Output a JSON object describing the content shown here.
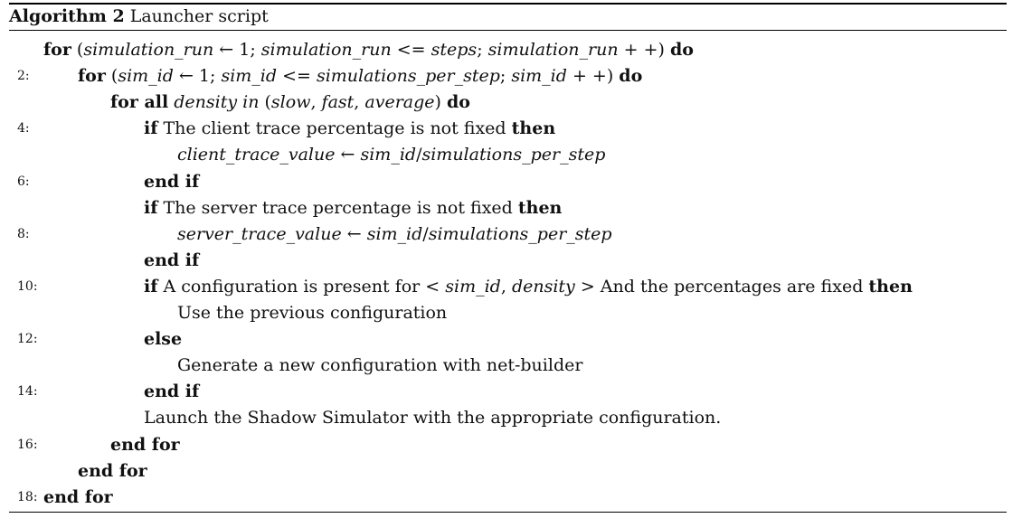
{
  "caption": {
    "label": "Algorithm 2",
    "title": "Launcher script"
  },
  "lines": [
    {
      "num": "",
      "parts": [
        {
          "t": "for",
          "k": "kw"
        },
        {
          "t": " (",
          "k": ""
        },
        {
          "t": "simulation_run",
          "k": "math"
        },
        {
          "t": " ← 1; ",
          "k": ""
        },
        {
          "t": "simulation_run",
          "k": "math"
        },
        {
          "t": " <= ",
          "k": ""
        },
        {
          "t": "steps",
          "k": "math"
        },
        {
          "t": "; ",
          "k": ""
        },
        {
          "t": "simulation_run",
          "k": "math"
        },
        {
          "t": " + +) ",
          "k": ""
        },
        {
          "t": "do",
          "k": "kw"
        }
      ]
    },
    {
      "num": "2:",
      "parts": [
        {
          "t": "for",
          "k": "kw"
        },
        {
          "t": " (",
          "k": ""
        },
        {
          "t": "sim_id",
          "k": "math"
        },
        {
          "t": " ← 1; ",
          "k": ""
        },
        {
          "t": "sim_id",
          "k": "math"
        },
        {
          "t": " <= ",
          "k": ""
        },
        {
          "t": "simulations_per_step",
          "k": "math"
        },
        {
          "t": "; ",
          "k": ""
        },
        {
          "t": "sim_id",
          "k": "math"
        },
        {
          "t": " + +) ",
          "k": ""
        },
        {
          "t": "do",
          "k": "kw"
        }
      ]
    },
    {
      "num": "",
      "parts": [
        {
          "t": "for all",
          "k": "kw"
        },
        {
          "t": " ",
          "k": ""
        },
        {
          "t": "density in",
          "k": "math"
        },
        {
          "t": " (",
          "k": ""
        },
        {
          "t": "slow",
          "k": "math"
        },
        {
          "t": ", ",
          "k": ""
        },
        {
          "t": "fast",
          "k": "math"
        },
        {
          "t": ", ",
          "k": ""
        },
        {
          "t": "average",
          "k": "math"
        },
        {
          "t": ") ",
          "k": ""
        },
        {
          "t": "do",
          "k": "kw"
        }
      ]
    },
    {
      "num": "4:",
      "parts": [
        {
          "t": "if",
          "k": "kw"
        },
        {
          "t": " The client trace percentage is not fixed ",
          "k": ""
        },
        {
          "t": "then",
          "k": "kw"
        }
      ]
    },
    {
      "num": "",
      "parts": [
        {
          "t": "client_trace_value",
          "k": "math"
        },
        {
          "t": " ← ",
          "k": ""
        },
        {
          "t": "sim_id",
          "k": "math"
        },
        {
          "t": "/",
          "k": ""
        },
        {
          "t": "simulations_per_step",
          "k": "math"
        }
      ]
    },
    {
      "num": "6:",
      "parts": [
        {
          "t": "end if",
          "k": "kw"
        }
      ]
    },
    {
      "num": "",
      "parts": [
        {
          "t": "if",
          "k": "kw"
        },
        {
          "t": " The server trace percentage is not fixed ",
          "k": ""
        },
        {
          "t": "then",
          "k": "kw"
        }
      ]
    },
    {
      "num": "8:",
      "parts": [
        {
          "t": "server_trace_value",
          "k": "math"
        },
        {
          "t": " ← ",
          "k": ""
        },
        {
          "t": "sim_id",
          "k": "math"
        },
        {
          "t": "/",
          "k": ""
        },
        {
          "t": "simulations_per_step",
          "k": "math"
        }
      ]
    },
    {
      "num": "",
      "parts": [
        {
          "t": "end if",
          "k": "kw"
        }
      ]
    },
    {
      "num": "10:",
      "parts": [
        {
          "t": "if",
          "k": "kw"
        },
        {
          "t": " A configuration is present for < ",
          "k": ""
        },
        {
          "t": "sim_id",
          "k": "math"
        },
        {
          "t": ", ",
          "k": ""
        },
        {
          "t": "density",
          "k": "math"
        },
        {
          "t": " > And the percentages are fixed ",
          "k": ""
        },
        {
          "t": "then",
          "k": "kw"
        }
      ]
    },
    {
      "num": "",
      "parts": [
        {
          "t": "Use the previous configuration",
          "k": ""
        }
      ]
    },
    {
      "num": "12:",
      "parts": [
        {
          "t": "else",
          "k": "kw"
        }
      ]
    },
    {
      "num": "",
      "parts": [
        {
          "t": "Generate a new configuration with net-builder",
          "k": ""
        }
      ]
    },
    {
      "num": "14:",
      "parts": [
        {
          "t": "end if",
          "k": "kw"
        }
      ]
    },
    {
      "num": "",
      "parts": [
        {
          "t": "Launch the Shadow Simulator with the appropriate configuration.",
          "k": ""
        }
      ]
    },
    {
      "num": "16:",
      "parts": [
        {
          "t": "end for",
          "k": "kw"
        }
      ]
    },
    {
      "num": "",
      "parts": [
        {
          "t": "end for",
          "k": "kw"
        }
      ]
    },
    {
      "num": "18:",
      "parts": [
        {
          "t": "end for",
          "k": "kw"
        }
      ]
    }
  ]
}
